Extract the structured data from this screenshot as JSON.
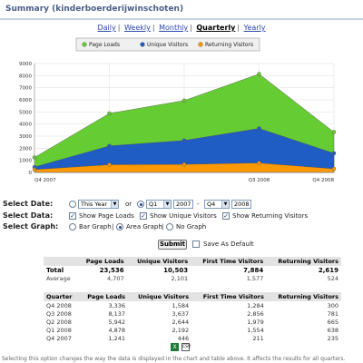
{
  "title": "Summary (kinderboerderijwinschoten)",
  "periods": [
    {
      "label": "Daily",
      "active": false
    },
    {
      "label": "Weekly",
      "active": false
    },
    {
      "label": "Monthly",
      "active": false
    },
    {
      "label": "Quarterly",
      "active": true
    },
    {
      "label": "Yearly",
      "active": false
    }
  ],
  "chart_data": {
    "type": "area",
    "categories": [
      "Q4 2007",
      "Q1 2008",
      "Q2 2008",
      "Q3 2008",
      "Q4 2008"
    ],
    "series": [
      {
        "name": "Page Loads",
        "color": "#66cc33",
        "values": [
          1241,
          4878,
          5942,
          8137,
          3336
        ]
      },
      {
        "name": "Unique Visitors",
        "color": "#1f5cc4",
        "values": [
          446,
          2192,
          2644,
          3637,
          1584
        ]
      },
      {
        "name": "Returning Visitors",
        "color": "#ff9900",
        "values": [
          235,
          638,
          665,
          781,
          300
        ]
      }
    ],
    "y_ticks": [
      0,
      1000,
      2000,
      3000,
      4000,
      5000,
      6000,
      7000,
      8000,
      9000
    ],
    "x_tick_labels": [
      "Q4 2007",
      "Q3 2008",
      "Q4 2008"
    ],
    "ylim": [
      0,
      9000
    ],
    "grid": true,
    "legend_position": "top"
  },
  "controls": {
    "select_date_label": "Select Date:",
    "this_year": "This Year",
    "or_label": "or",
    "q_from": "Q1",
    "year_from": "2007",
    "dash": "-",
    "q_to": "Q4",
    "year_to": "2008",
    "select_data_label": "Select Data:",
    "show_page_loads": "Show Page Loads",
    "show_unique": "Show Unique Visitors",
    "show_returning": "Show Returning Visitors",
    "select_graph_label": "Select Graph:",
    "bar_graph": "Bar Graph",
    "area_graph": "Area Graph",
    "no_graph": "No Graph",
    "submit": "Submit",
    "save_default": "Save As Default"
  },
  "summary_table": {
    "headers": [
      "",
      "Page Loads",
      "Unique Visitors",
      "First Time Visitors",
      "Returning Visitors"
    ],
    "total": [
      "Total",
      "23,536",
      "10,503",
      "7,884",
      "2,619"
    ],
    "average": [
      "Average",
      "4,707",
      "2,101",
      "1,577",
      "524"
    ]
  },
  "quarter_table": {
    "headers": [
      "Quarter",
      "Page Loads",
      "Unique Visitors",
      "First Time Visitors",
      "Returning Visitors"
    ],
    "rows": [
      [
        "Q4 2008",
        "3,336",
        "1,584",
        "1,284",
        "300"
      ],
      [
        "Q3 2008",
        "8,137",
        "3,637",
        "2,856",
        "781"
      ],
      [
        "Q2 2008",
        "5,942",
        "2,644",
        "1,979",
        "665"
      ],
      [
        "Q1 2008",
        "4,878",
        "2,192",
        "1,554",
        "638"
      ],
      [
        "Q4 2007",
        "1,241",
        "446",
        "211",
        "235"
      ]
    ]
  },
  "export": {
    "xls_icon": "excel-icon",
    "xls_text": "X",
    "csv_icon": "csv-icon",
    "csv_text": "CSV"
  },
  "footnote": "Selecting this option changes the way the data is displayed in the chart and table above. It affects the results for all quarters."
}
